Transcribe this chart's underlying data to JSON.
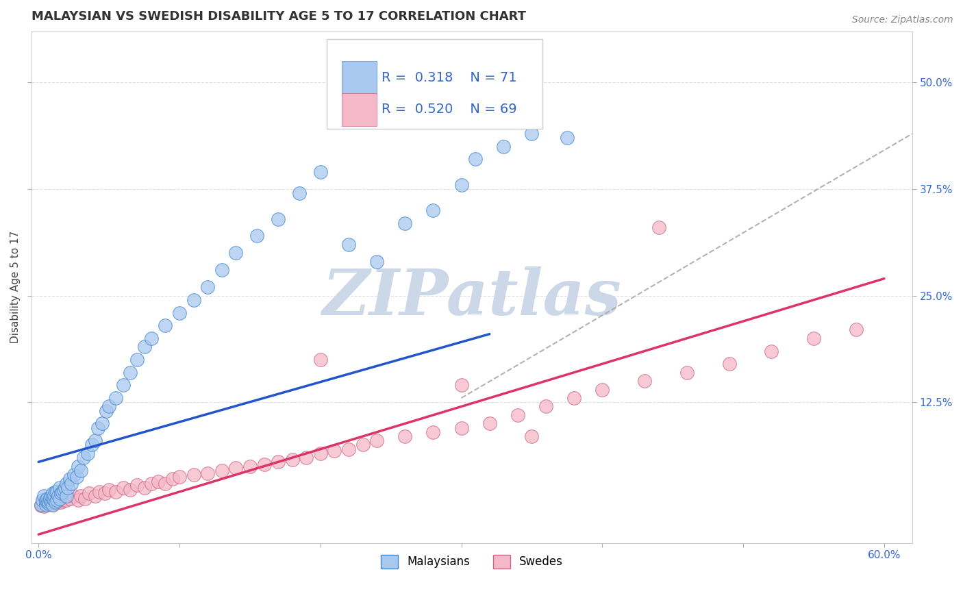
{
  "title": "MALAYSIAN VS SWEDISH DISABILITY AGE 5 TO 17 CORRELATION CHART",
  "source_text": "Source: ZipAtlas.com",
  "ylabel": "Disability Age 5 to 17",
  "xlim": [
    -0.005,
    0.62
  ],
  "ylim": [
    -0.04,
    0.56
  ],
  "xticks": [
    0.0,
    0.1,
    0.2,
    0.3,
    0.4,
    0.5,
    0.6
  ],
  "yticks": [
    0.125,
    0.25,
    0.375,
    0.5
  ],
  "yticklabels": [
    "12.5%",
    "25.0%",
    "37.5%",
    "50.0%"
  ],
  "malaysian_color": "#a8c8f0",
  "swedish_color": "#f5b8c8",
  "blue_line_color": "#2255cc",
  "pink_line_color": "#dd3366",
  "dash_line_color": "#aaaaaa",
  "watermark_text": "ZIPatlas",
  "watermark_color": "#ccd8e8",
  "background_color": "#ffffff",
  "grid_color": "#e0e0e0",
  "title_fontsize": 13,
  "axis_label_fontsize": 11,
  "tick_fontsize": 11,
  "legend_fontsize": 14,
  "blue_line_x": [
    0.0,
    0.32
  ],
  "blue_line_y": [
    0.055,
    0.205
  ],
  "pink_line_x": [
    0.0,
    0.6
  ],
  "pink_line_y": [
    -0.03,
    0.27
  ],
  "dash_line_x": [
    0.3,
    0.62
  ],
  "dash_line_y": [
    0.13,
    0.44
  ],
  "malaysian_x": [
    0.002,
    0.003,
    0.004,
    0.005,
    0.005,
    0.006,
    0.006,
    0.007,
    0.007,
    0.008,
    0.008,
    0.009,
    0.009,
    0.01,
    0.01,
    0.01,
    0.011,
    0.011,
    0.012,
    0.012,
    0.013,
    0.013,
    0.014,
    0.015,
    0.015,
    0.016,
    0.017,
    0.018,
    0.019,
    0.02,
    0.02,
    0.021,
    0.022,
    0.023,
    0.025,
    0.027,
    0.028,
    0.03,
    0.032,
    0.035,
    0.038,
    0.04,
    0.042,
    0.045,
    0.048,
    0.05,
    0.055,
    0.06,
    0.065,
    0.07,
    0.075,
    0.08,
    0.09,
    0.1,
    0.11,
    0.12,
    0.13,
    0.14,
    0.155,
    0.17,
    0.185,
    0.2,
    0.22,
    0.24,
    0.26,
    0.28,
    0.3,
    0.31,
    0.33,
    0.35,
    0.375
  ],
  "malaysian_y": [
    0.005,
    0.01,
    0.015,
    0.005,
    0.01,
    0.008,
    0.012,
    0.006,
    0.009,
    0.01,
    0.013,
    0.008,
    0.015,
    0.005,
    0.012,
    0.018,
    0.01,
    0.016,
    0.008,
    0.02,
    0.01,
    0.02,
    0.015,
    0.012,
    0.025,
    0.018,
    0.02,
    0.022,
    0.025,
    0.015,
    0.03,
    0.025,
    0.035,
    0.03,
    0.04,
    0.038,
    0.05,
    0.045,
    0.06,
    0.065,
    0.075,
    0.08,
    0.095,
    0.1,
    0.115,
    0.12,
    0.13,
    0.145,
    0.16,
    0.175,
    0.19,
    0.2,
    0.215,
    0.23,
    0.245,
    0.26,
    0.28,
    0.3,
    0.32,
    0.34,
    0.37,
    0.395,
    0.31,
    0.29,
    0.335,
    0.35,
    0.38,
    0.41,
    0.425,
    0.44,
    0.435
  ],
  "swedish_x": [
    0.002,
    0.003,
    0.004,
    0.005,
    0.006,
    0.007,
    0.008,
    0.009,
    0.01,
    0.011,
    0.012,
    0.013,
    0.014,
    0.015,
    0.016,
    0.018,
    0.02,
    0.022,
    0.025,
    0.028,
    0.03,
    0.033,
    0.036,
    0.04,
    0.043,
    0.047,
    0.05,
    0.055,
    0.06,
    0.065,
    0.07,
    0.075,
    0.08,
    0.085,
    0.09,
    0.095,
    0.1,
    0.11,
    0.12,
    0.13,
    0.14,
    0.15,
    0.16,
    0.17,
    0.18,
    0.19,
    0.2,
    0.21,
    0.22,
    0.23,
    0.24,
    0.26,
    0.28,
    0.3,
    0.32,
    0.34,
    0.36,
    0.38,
    0.4,
    0.43,
    0.46,
    0.49,
    0.52,
    0.55,
    0.58,
    0.44,
    0.3,
    0.2,
    0.35
  ],
  "swedish_y": [
    0.004,
    0.005,
    0.003,
    0.006,
    0.005,
    0.007,
    0.006,
    0.008,
    0.005,
    0.008,
    0.007,
    0.009,
    0.008,
    0.01,
    0.008,
    0.01,
    0.01,
    0.012,
    0.015,
    0.01,
    0.015,
    0.012,
    0.018,
    0.015,
    0.02,
    0.018,
    0.022,
    0.02,
    0.025,
    0.022,
    0.028,
    0.025,
    0.03,
    0.032,
    0.03,
    0.035,
    0.038,
    0.04,
    0.042,
    0.045,
    0.048,
    0.05,
    0.052,
    0.055,
    0.058,
    0.06,
    0.065,
    0.068,
    0.07,
    0.075,
    0.08,
    0.085,
    0.09,
    0.095,
    0.1,
    0.11,
    0.12,
    0.13,
    0.14,
    0.15,
    0.16,
    0.17,
    0.185,
    0.2,
    0.21,
    0.33,
    0.145,
    0.175,
    0.085
  ]
}
